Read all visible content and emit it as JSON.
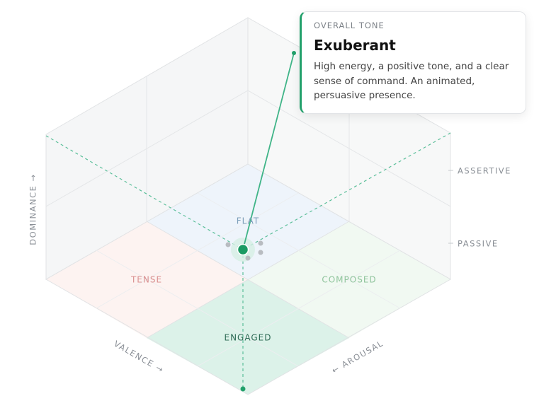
{
  "tooltip": {
    "eyebrow": "OVERALL TONE",
    "title": "Exuberant",
    "description": "High energy, a positive tone, and a clear sense of command. An animated, persuasive presence."
  },
  "quadrants": {
    "flat": "FLAT",
    "tense": "TENSE",
    "composed": "COMPOSED",
    "engaged": "ENGAGED"
  },
  "axes": {
    "dominance": "DOMINANCE →",
    "valence": "VALENCE →",
    "arousal": "← AROUSAL"
  },
  "levels": {
    "high": "ASSERTIVE",
    "low": "PASSIVE"
  }
}
